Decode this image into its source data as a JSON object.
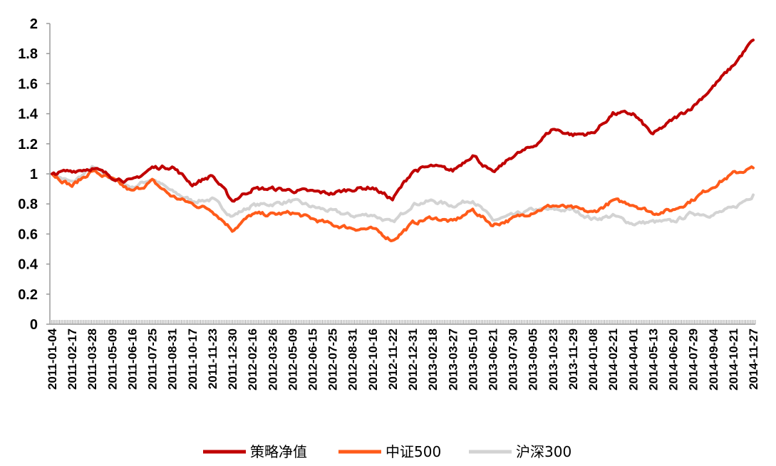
{
  "chart_data": {
    "type": "line",
    "title": "",
    "xlabel": "",
    "ylabel": "",
    "ylim": [
      0,
      2
    ],
    "yticks": [
      "0",
      "0.2",
      "0.4",
      "0.6",
      "0.8",
      "1",
      "1.2",
      "1.4",
      "1.6",
      "1.8",
      "2"
    ],
    "grid": false,
    "legend_position": "bottom",
    "x": [
      "2011-01-04",
      "2011-02-17",
      "2011-03-28",
      "2011-05-09",
      "2011-06-16",
      "2011-07-25",
      "2011-08-31",
      "2011-10-17",
      "2011-11-23",
      "2011-12-30",
      "2012-02-16",
      "2012-03-26",
      "2012-05-09",
      "2012-06-15",
      "2012-07-25",
      "2012-08-31",
      "2012-10-16",
      "2012-11-22",
      "2012-12-31",
      "2013-02-18",
      "2013-03-27",
      "2013-05-10",
      "2013-06-21",
      "2013-07-30",
      "2013-09-05",
      "2013-10-23",
      "2013-11-29",
      "2014-01-08",
      "2014-02-21",
      "2014-04-01",
      "2014-05-13",
      "2014-06-20",
      "2014-07-29",
      "2014-09-04",
      "2014-10-21",
      "2014-11-27"
    ],
    "series": [
      {
        "name": "策略净值",
        "color": "#c00000",
        "values": [
          1.0,
          1.02,
          1.04,
          0.98,
          0.95,
          1.04,
          1.05,
          0.93,
          0.99,
          0.82,
          0.9,
          0.9,
          0.89,
          0.88,
          0.87,
          0.9,
          0.91,
          0.83,
          1.02,
          1.05,
          1.02,
          1.13,
          1.0,
          1.12,
          1.18,
          1.3,
          1.26,
          1.27,
          1.4,
          1.4,
          1.26,
          1.36,
          1.45,
          1.58,
          1.72,
          1.89
        ]
      },
      {
        "name": "中证500",
        "color": "#ff5b1a",
        "values": [
          1.0,
          0.92,
          1.02,
          0.96,
          0.88,
          0.95,
          0.85,
          0.8,
          0.76,
          0.63,
          0.73,
          0.73,
          0.74,
          0.7,
          0.66,
          0.64,
          0.63,
          0.56,
          0.67,
          0.71,
          0.68,
          0.76,
          0.66,
          0.7,
          0.75,
          0.79,
          0.77,
          0.74,
          0.82,
          0.8,
          0.74,
          0.76,
          0.83,
          0.92,
          1.0,
          1.04
        ]
      },
      {
        "name": "沪深300",
        "color": "#d3d3d3",
        "values": [
          1.0,
          0.94,
          1.04,
          0.97,
          0.91,
          0.97,
          0.88,
          0.82,
          0.83,
          0.72,
          0.79,
          0.8,
          0.82,
          0.78,
          0.75,
          0.72,
          0.73,
          0.67,
          0.8,
          0.82,
          0.79,
          0.83,
          0.69,
          0.72,
          0.76,
          0.76,
          0.76,
          0.7,
          0.72,
          0.67,
          0.68,
          0.68,
          0.74,
          0.73,
          0.77,
          0.86
        ]
      }
    ]
  }
}
